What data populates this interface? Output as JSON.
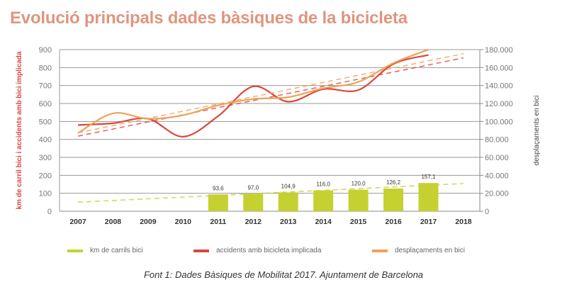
{
  "chart_data": {
    "type": "bar+line",
    "title": "Evolució principals dades bàsiques de la bicicleta",
    "categories": [
      "2007",
      "2008",
      "2009",
      "2010",
      "2011",
      "2012",
      "2013",
      "2014",
      "2015",
      "2016",
      "2017",
      "2018"
    ],
    "ylabel_left": "km de carril bici i accidents amb bici implicada",
    "ylabel_right": "desplaçaments en bici",
    "ylim_left": [
      0,
      900
    ],
    "ylim_right": [
      0,
      180000
    ],
    "yticks_left": [
      "0",
      "100",
      "200",
      "300",
      "400",
      "500",
      "600",
      "700",
      "800",
      "900"
    ],
    "yticks_right": [
      "0",
      "20.000",
      "40.000",
      "60.000",
      "80.000",
      "100.000",
      "120.000",
      "140.000",
      "160.000",
      "180.000"
    ],
    "grid": true,
    "legend_position": "bottom",
    "series": [
      {
        "name": "km de carrils bici",
        "type": "bar",
        "axis": "left",
        "color": "#c5d130",
        "values": [
          null,
          null,
          null,
          null,
          93.6,
          97.0,
          104.9,
          116.0,
          120.0,
          126.2,
          157.1,
          null
        ],
        "labels": [
          "",
          "",
          "",
          "",
          "93,6",
          "97,0",
          "104,9",
          "116,0",
          "120,0",
          "126,2",
          "157,1",
          ""
        ],
        "trendline": true
      },
      {
        "name": "accidents amb bicicleta implicada",
        "type": "line",
        "axis": "left",
        "color": "#d9473f",
        "values": [
          480,
          490,
          515,
          415,
          530,
          695,
          610,
          680,
          675,
          820,
          870,
          null
        ],
        "trendline": true
      },
      {
        "name": "desplaçaments en bici",
        "type": "line",
        "axis": "right",
        "color": "#f0a257",
        "values": [
          87000,
          109000,
          103000,
          107000,
          118000,
          125000,
          127000,
          137000,
          144000,
          165000,
          180000,
          null
        ],
        "trendline": true
      }
    ]
  },
  "caption": "Font 1: Dades Bàsiques de Mobilitat 2017. Ajuntament de Barcelona"
}
